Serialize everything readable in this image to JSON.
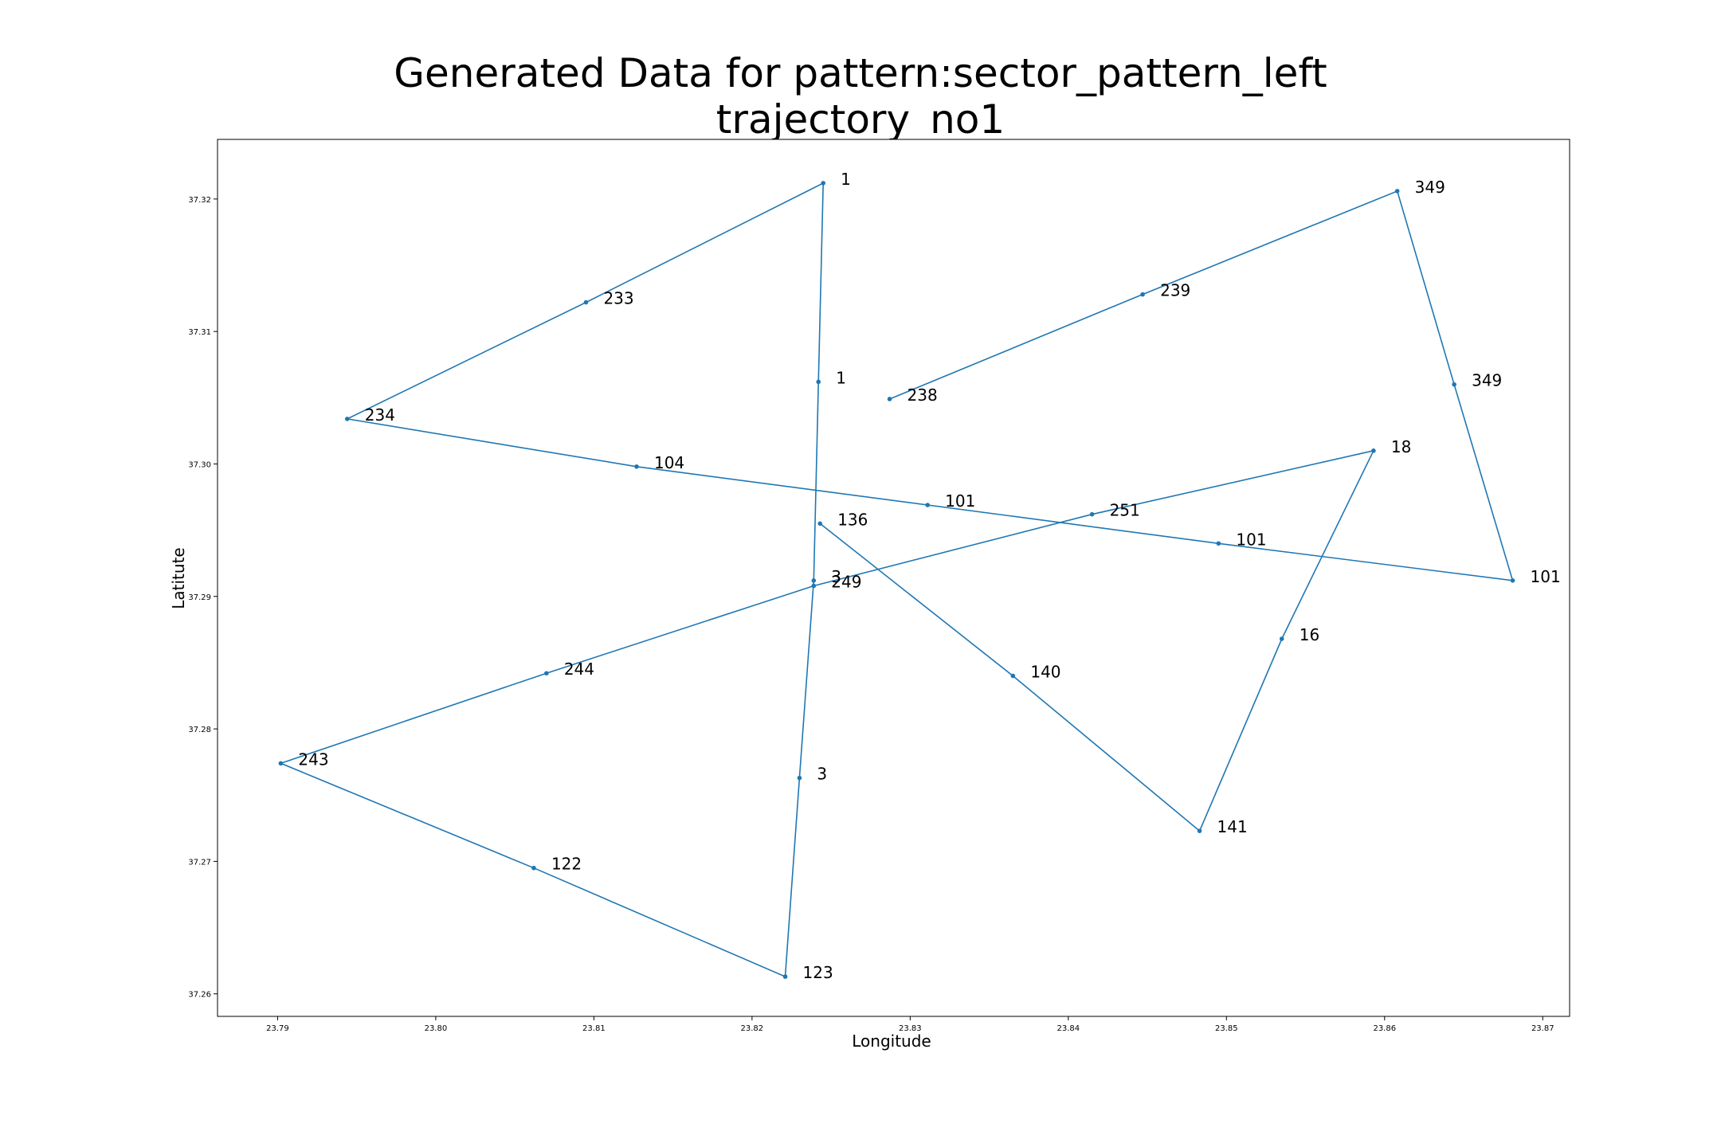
{
  "chart_data": {
    "type": "line",
    "title_lines": [
      "Generated Data for pattern:sector_pattern_left",
      "trajectory_no1"
    ],
    "xlabel": "Longitude",
    "ylabel": "Latitute",
    "xlim": [
      23.7862,
      23.8717
    ],
    "ylim": [
      37.2583,
      37.3245
    ],
    "xticks": [
      23.79,
      23.8,
      23.81,
      23.82,
      23.83,
      23.84,
      23.85,
      23.86,
      23.87
    ],
    "xtick_labels": [
      "23.79",
      "23.80",
      "23.81",
      "23.82",
      "23.83",
      "23.84",
      "23.85",
      "23.86",
      "23.87"
    ],
    "yticks": [
      37.26,
      37.27,
      37.28,
      37.29,
      37.3,
      37.31,
      37.32
    ],
    "ytick_labels": [
      "37.26",
      "37.27",
      "37.28",
      "37.29",
      "37.30",
      "37.31",
      "37.32"
    ],
    "grid": false,
    "line_color": "#1f77b4",
    "series": [
      {
        "points": [
          {
            "x": 23.8287,
            "y": 37.3049,
            "label": "238"
          },
          {
            "x": 23.8447,
            "y": 37.3128,
            "label": "239"
          },
          {
            "x": 23.8608,
            "y": 37.3206,
            "label": "349"
          },
          {
            "x": 23.8644,
            "y": 37.306,
            "label": "349"
          },
          {
            "x": 23.8681,
            "y": 37.2912,
            "label": "101"
          },
          {
            "x": 23.8495,
            "y": 37.294,
            "label": "101"
          },
          {
            "x": 23.8311,
            "y": 37.2969,
            "label": "101"
          },
          {
            "x": 23.8127,
            "y": 37.2998,
            "label": "104"
          },
          {
            "x": 23.7944,
            "y": 37.3034,
            "label": "234"
          },
          {
            "x": 23.8095,
            "y": 37.3122,
            "label": "233"
          },
          {
            "x": 23.8245,
            "y": 37.3212,
            "label": "1"
          },
          {
            "x": 23.8242,
            "y": 37.3062,
            "label": "1"
          },
          {
            "x": 23.8239,
            "y": 37.2912,
            "label": "3"
          },
          {
            "x": 23.823,
            "y": 37.2763,
            "label": "3"
          },
          {
            "x": 23.8221,
            "y": 37.2613,
            "label": "123"
          },
          {
            "x": 23.8062,
            "y": 37.2695,
            "label": "122"
          },
          {
            "x": 23.7902,
            "y": 37.2774,
            "label": "243"
          },
          {
            "x": 23.807,
            "y": 37.2842,
            "label": "244"
          },
          {
            "x": 23.8239,
            "y": 37.2908,
            "label": "249"
          },
          {
            "x": 23.8415,
            "y": 37.2962,
            "label": "251"
          },
          {
            "x": 23.8593,
            "y": 37.301,
            "label": "18"
          },
          {
            "x": 23.8535,
            "y": 37.2868,
            "label": "16"
          },
          {
            "x": 23.8483,
            "y": 37.2723,
            "label": "141"
          },
          {
            "x": 23.8365,
            "y": 37.284,
            "label": "140"
          },
          {
            "x": 23.8243,
            "y": 37.2955,
            "label": "136"
          }
        ]
      }
    ]
  }
}
